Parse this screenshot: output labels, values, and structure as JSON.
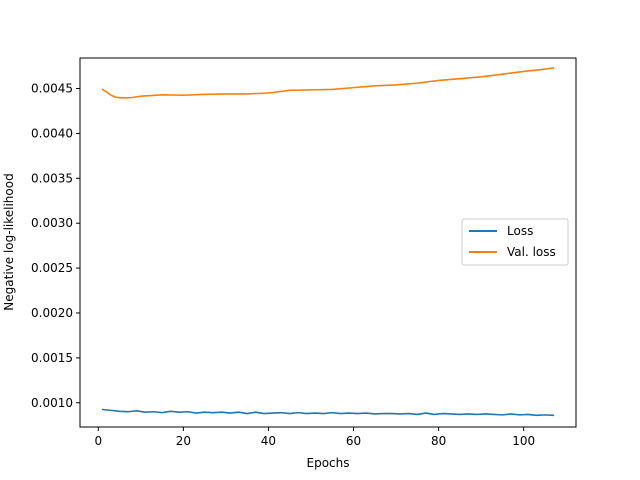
{
  "chart_data": {
    "type": "line",
    "title": "",
    "xlabel": "Epochs",
    "ylabel": "Negative log-likelihood",
    "xlim": [
      -4.3,
      112.3
    ],
    "ylim": [
      0.00073,
      0.00484
    ],
    "xticks": [
      0,
      20,
      40,
      60,
      80,
      100
    ],
    "xtick_labels": [
      "0",
      "20",
      "40",
      "60",
      "80",
      "100"
    ],
    "yticks": [
      0.001,
      0.0015,
      0.002,
      0.0025,
      0.003,
      0.0035,
      0.004,
      0.0045
    ],
    "ytick_labels": [
      "0.0010",
      "0.0015",
      "0.0020",
      "0.0025",
      "0.0030",
      "0.0035",
      "0.0040",
      "0.0045"
    ],
    "grid": false,
    "legend_position": "center-right",
    "series": [
      {
        "name": "Loss",
        "color": "#1f77b4",
        "x": [
          1,
          3,
          5,
          7,
          9,
          11,
          13,
          15,
          17,
          19,
          21,
          23,
          25,
          27,
          29,
          31,
          33,
          35,
          37,
          39,
          41,
          43,
          45,
          47,
          49,
          51,
          53,
          55,
          57,
          59,
          61,
          63,
          65,
          67,
          69,
          71,
          73,
          75,
          77,
          79,
          81,
          83,
          85,
          87,
          89,
          91,
          93,
          95,
          97,
          99,
          101,
          103,
          105,
          107
        ],
        "y": [
          0.000925,
          0.000915,
          0.000905,
          0.0009,
          0.00091,
          0.000895,
          0.0009,
          0.00089,
          0.000905,
          0.000895,
          0.0009,
          0.000885,
          0.000895,
          0.00089,
          0.000895,
          0.000885,
          0.000895,
          0.00088,
          0.000895,
          0.00088,
          0.000885,
          0.00089,
          0.00088,
          0.00089,
          0.00088,
          0.000885,
          0.00088,
          0.00089,
          0.00088,
          0.000885,
          0.00088,
          0.000885,
          0.000875,
          0.00088,
          0.00088,
          0.000875,
          0.00088,
          0.00087,
          0.000885,
          0.00087,
          0.00088,
          0.000875,
          0.00087,
          0.000875,
          0.00087,
          0.000875,
          0.00087,
          0.000865,
          0.000875,
          0.000865,
          0.00087,
          0.00086,
          0.000865,
          0.00086
        ]
      },
      {
        "name": "Val. loss",
        "color": "#ff7f0e",
        "x": [
          1,
          2,
          3,
          4,
          5,
          6,
          8,
          10,
          15,
          20,
          25,
          30,
          35,
          40,
          45,
          50,
          55,
          60,
          65,
          70,
          75,
          80,
          85,
          90,
          95,
          100,
          104,
          107
        ],
        "y": [
          0.00449,
          0.00446,
          0.004425,
          0.004405,
          0.004398,
          0.004395,
          0.0044,
          0.004415,
          0.00443,
          0.004425,
          0.004435,
          0.00444,
          0.00444,
          0.00445,
          0.00448,
          0.004485,
          0.00449,
          0.00451,
          0.00453,
          0.00454,
          0.00456,
          0.00459,
          0.00461,
          0.00463,
          0.00466,
          0.00469,
          0.00471,
          0.00473
        ]
      }
    ]
  }
}
